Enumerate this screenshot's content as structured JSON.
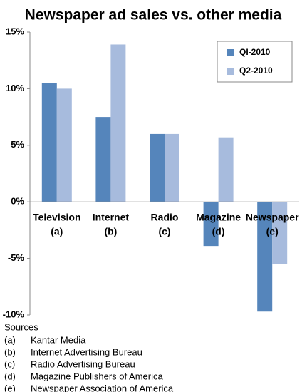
{
  "chart_data": {
    "type": "bar",
    "title": "Newspaper ad sales vs. other media",
    "categories": [
      "Television",
      "Internet",
      "Radio",
      "Magazine",
      "Newspaper"
    ],
    "category_notes": [
      "(a)",
      "(b)",
      "(c)",
      "(d)",
      "(e)"
    ],
    "series": [
      {
        "name": "QI-2010",
        "color": "#5585bb",
        "values": [
          10.5,
          7.5,
          6,
          -3.9,
          -9.7
        ]
      },
      {
        "name": "Q2-2010",
        "color": "#a7bbdd",
        "values": [
          10,
          13.9,
          6,
          5.7,
          -5.5
        ]
      }
    ],
    "ylim": [
      -10,
      15
    ],
    "yticks": [
      {
        "value": -10,
        "label": "-10%"
      },
      {
        "value": -5,
        "label": "-5%"
      },
      {
        "value": 0,
        "label": "0%"
      },
      {
        "value": 5,
        "label": "5%"
      },
      {
        "value": 10,
        "label": "10%"
      },
      {
        "value": 15,
        "label": "15%"
      }
    ],
    "legend": "top-right",
    "grid": false
  },
  "sources": {
    "title": "Sources",
    "items": [
      {
        "key": "(a)",
        "name": "Kantar Media"
      },
      {
        "key": "(b)",
        "name": "Internet Advertising Bureau"
      },
      {
        "key": "(c)",
        "name": "Radio Advertising Bureau"
      },
      {
        "key": "(d)",
        "name": "Magazine Publishers of America"
      },
      {
        "key": "(e)",
        "name": "Newspaper Association of America"
      }
    ]
  }
}
